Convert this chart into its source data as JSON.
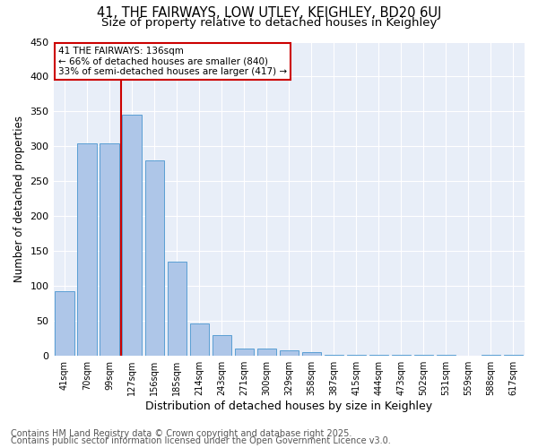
{
  "title1": "41, THE FAIRWAYS, LOW UTLEY, KEIGHLEY, BD20 6UJ",
  "title2": "Size of property relative to detached houses in Keighley",
  "xlabel": "Distribution of detached houses by size in Keighley",
  "ylabel": "Number of detached properties",
  "categories": [
    "41sqm",
    "70sqm",
    "99sqm",
    "127sqm",
    "156sqm",
    "185sqm",
    "214sqm",
    "243sqm",
    "271sqm",
    "300sqm",
    "329sqm",
    "358sqm",
    "387sqm",
    "415sqm",
    "444sqm",
    "473sqm",
    "502sqm",
    "531sqm",
    "559sqm",
    "588sqm",
    "617sqm"
  ],
  "values": [
    93,
    305,
    305,
    345,
    280,
    135,
    46,
    30,
    11,
    11,
    8,
    6,
    2,
    2,
    2,
    2,
    1,
    1,
    0,
    1,
    2
  ],
  "bar_color": "#aec6e8",
  "bar_edge_color": "#5a9fd4",
  "vline_color": "#cc0000",
  "annotation_title": "41 THE FAIRWAYS: 136sqm",
  "annotation_line1": "← 66% of detached houses are smaller (840)",
  "annotation_line2": "33% of semi-detached houses are larger (417) →",
  "annotation_box_color": "#cc0000",
  "ylim": [
    0,
    450
  ],
  "yticks": [
    0,
    50,
    100,
    150,
    200,
    250,
    300,
    350,
    400,
    450
  ],
  "background_color": "#e8eef8",
  "footer1": "Contains HM Land Registry data © Crown copyright and database right 2025.",
  "footer2": "Contains public sector information licensed under the Open Government Licence v3.0.",
  "title_fontsize": 10.5,
  "subtitle_fontsize": 9.5,
  "footer_fontsize": 7.0,
  "grid_color": "#ffffff"
}
